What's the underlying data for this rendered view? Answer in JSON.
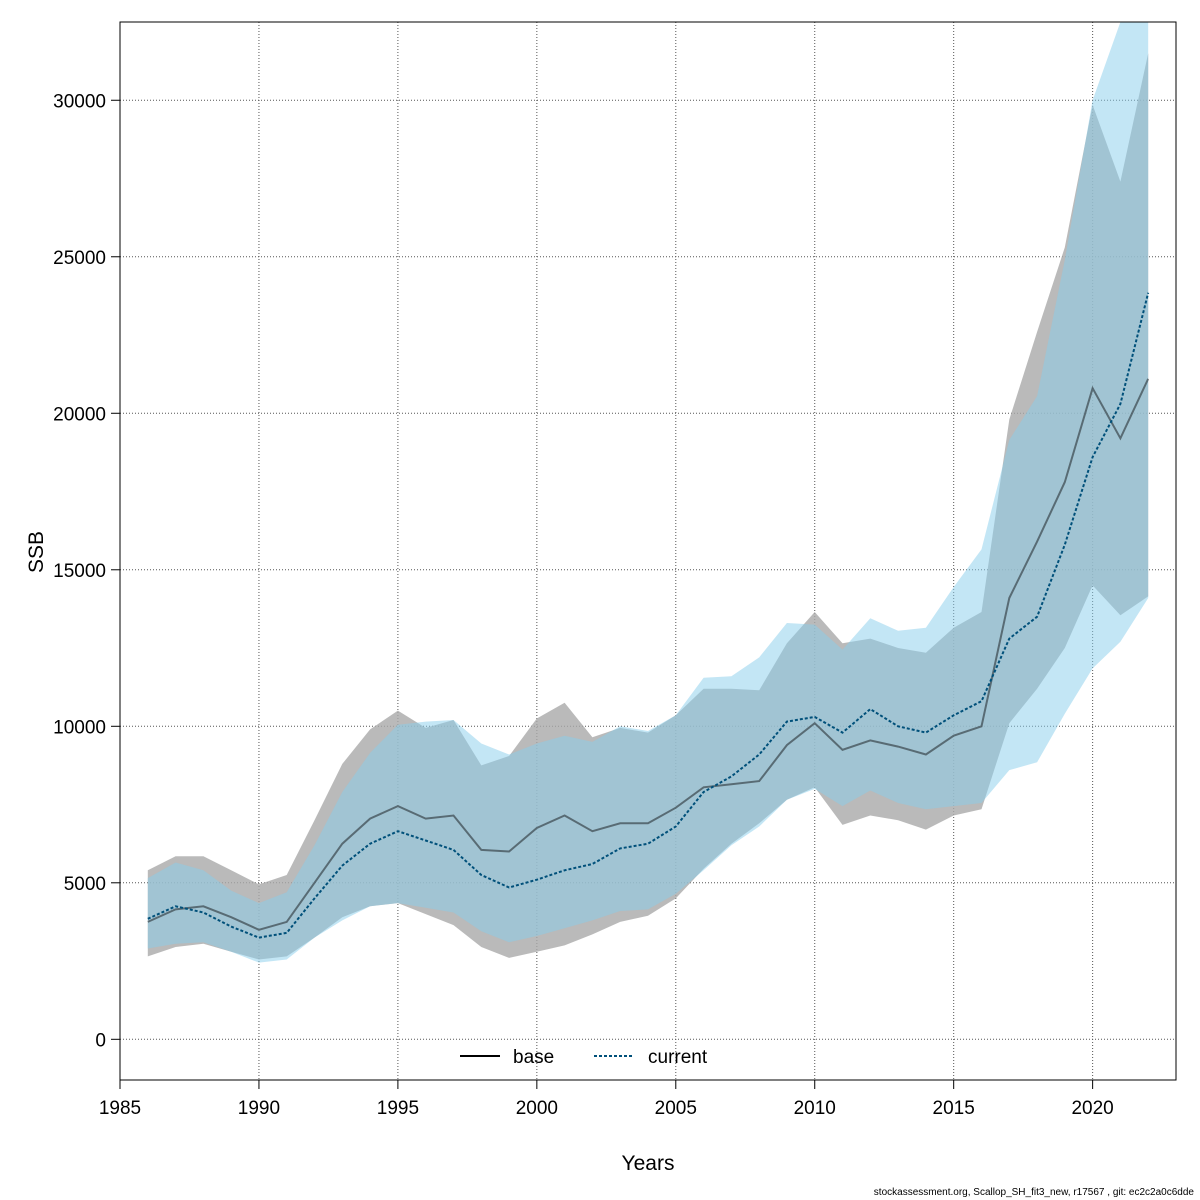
{
  "chart_data": {
    "type": "line",
    "title": "",
    "xlabel": "Years",
    "ylabel": "SSB",
    "xlim": [
      1985,
      2023
    ],
    "ylim": [
      -1300,
      32500
    ],
    "x_ticks": [
      1985,
      1990,
      1995,
      2000,
      2005,
      2010,
      2015,
      2020
    ],
    "y_ticks": [
      0,
      5000,
      10000,
      15000,
      20000,
      25000,
      30000
    ],
    "grid": true,
    "legend_position": "bottom-center",
    "years": [
      1986,
      1987,
      1988,
      1989,
      1990,
      1991,
      1992,
      1993,
      1994,
      1995,
      1996,
      1997,
      1998,
      1999,
      2000,
      2001,
      2002,
      2003,
      2004,
      2005,
      2006,
      2007,
      2008,
      2009,
      2010,
      2011,
      2012,
      2013,
      2014,
      2015,
      2016,
      2017,
      2018,
      2019,
      2020,
      2021,
      2022
    ],
    "series": [
      {
        "name": "base",
        "line_style": "solid",
        "color": "#000000",
        "band_color": "#a9a9a9",
        "values": [
          3750,
          4150,
          4250,
          3900,
          3500,
          3750,
          5000,
          6250,
          7050,
          7450,
          7050,
          7150,
          6050,
          6000,
          6750,
          7150,
          6650,
          6900,
          6900,
          7400,
          8050,
          8150,
          8250,
          9400,
          10100,
          9250,
          9550,
          9350,
          9100,
          9700,
          10000,
          14100,
          15900,
          17800,
          20800,
          19200,
          21100
        ],
        "lower": [
          2650,
          2950,
          3050,
          2800,
          2550,
          2650,
          3250,
          3900,
          4250,
          4350,
          4000,
          3650,
          2950,
          2600,
          2800,
          3000,
          3350,
          3750,
          3950,
          4500,
          5450,
          6250,
          6900,
          7650,
          8050,
          6850,
          7150,
          7000,
          6700,
          7150,
          7350,
          10100,
          11200,
          12500,
          14500,
          13550,
          14150
        ],
        "upper": [
          5400,
          5850,
          5850,
          5400,
          4950,
          5250,
          7000,
          8800,
          9900,
          10500,
          9950,
          10200,
          8750,
          9050,
          10250,
          10750,
          9650,
          9950,
          9800,
          10350,
          11200,
          11200,
          11150,
          12650,
          13650,
          12650,
          12800,
          12500,
          12350,
          13150,
          13650,
          19800,
          22600,
          25300,
          29850,
          27400,
          31500
        ]
      },
      {
        "name": "current",
        "line_style": "dotted",
        "color": "#00507a",
        "band_color": "#87ceeb",
        "values": [
          3850,
          4250,
          4050,
          3600,
          3250,
          3400,
          4500,
          5550,
          6250,
          6650,
          6350,
          6050,
          5250,
          4850,
          5100,
          5400,
          5600,
          6100,
          6250,
          6800,
          7900,
          8400,
          9100,
          10150,
          10300,
          9800,
          10550,
          10000,
          9800,
          10350,
          10800,
          12800,
          13500,
          15800,
          18600,
          20300,
          23850
        ],
        "lower": [
          2900,
          3050,
          3100,
          2800,
          2450,
          2550,
          3250,
          3800,
          4250,
          4350,
          4200,
          4050,
          3450,
          3100,
          3300,
          3550,
          3800,
          4100,
          4150,
          4650,
          5400,
          6200,
          6800,
          7650,
          8000,
          7450,
          7950,
          7550,
          7350,
          7450,
          7550,
          8600,
          8850,
          10400,
          11850,
          12700,
          14100
        ],
        "upper": [
          5150,
          5650,
          5400,
          4750,
          4350,
          4700,
          6200,
          7900,
          9150,
          10050,
          10150,
          10200,
          9450,
          9100,
          9450,
          9700,
          9500,
          10000,
          9850,
          10350,
          11550,
          11600,
          12200,
          13300,
          13250,
          12450,
          13450,
          13050,
          13150,
          14450,
          15650,
          19150,
          20550,
          24900,
          30000,
          32500,
          32500
        ]
      }
    ]
  },
  "footer": "stockassessment.org, Scallop_SH_fit3_new, r17567 , git: ec2c2a0c6dde"
}
